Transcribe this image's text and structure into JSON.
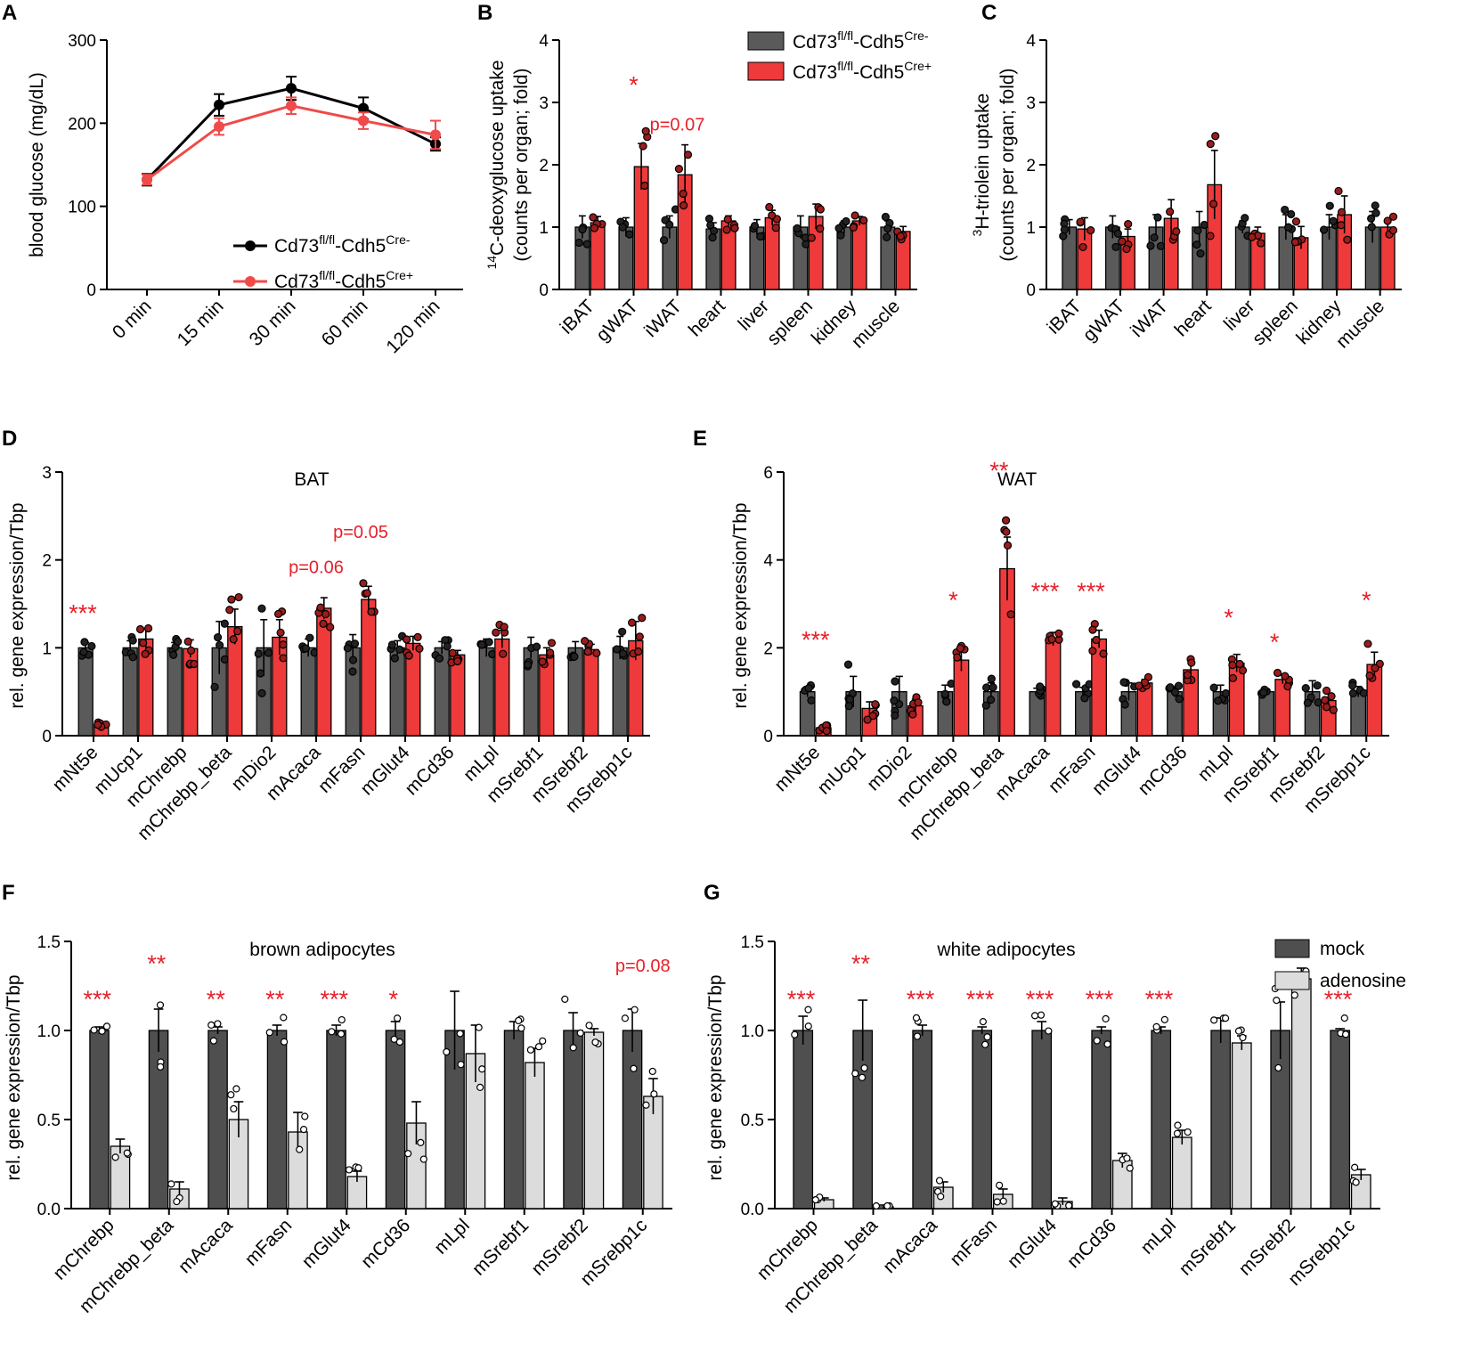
{
  "colors": {
    "ctrl": "#5a5a5a",
    "cre": "#ee3a3a",
    "mock": "#4f4f4f",
    "adenosine": "#dcdcdc",
    "sig": "#e8202a",
    "line_ctrl": "#000000",
    "line_cre": "#f04a4a"
  },
  "legend": {
    "ctrl_base": "Cd73",
    "ctrl_sup1": "fl/fl",
    "ctrl_mid": "-Cdh5",
    "ctrl_sup2": "Cre-",
    "cre_base": "Cd73",
    "cre_sup1": "fl/fl",
    "cre_mid": "-Cdh5",
    "cre_sup2": "Cre+",
    "mock": "mock",
    "adenosine": "adenosine"
  },
  "chart_data": [
    {
      "panel": "A",
      "type": "line",
      "ylabel": "blood glucose (mg/dL)",
      "categories": [
        "0 min",
        "15 min",
        "30 min",
        "60 min",
        "120 min"
      ],
      "yticks": [
        "0",
        "100",
        "200",
        "300"
      ],
      "ylim": [
        0,
        300
      ],
      "series": [
        {
          "name": "Cd73fl/fl-Cdh5Cre-",
          "values": [
            132,
            222,
            242,
            218,
            175
          ],
          "err": [
            7,
            13,
            14,
            13,
            8
          ]
        },
        {
          "name": "Cd73fl/fl-Cdh5Cre+",
          "values": [
            132,
            196,
            221,
            203,
            186
          ],
          "err": [
            6,
            10,
            10,
            10,
            17
          ]
        }
      ]
    },
    {
      "panel": "B",
      "type": "bar",
      "ylabel1": "14C-deoxyglucose uptake",
      "ylabel_sup": "14",
      "ylabel_base": "C-deoxyglucose uptake",
      "ylabel2": "(counts per organ; fold)",
      "categories": [
        "iBAT",
        "gWAT",
        "iWAT",
        "heart",
        "liver",
        "spleen",
        "kidney",
        "muscle"
      ],
      "yticks": [
        "0",
        "1",
        "2",
        "3",
        "4"
      ],
      "ylim": [
        0,
        4
      ],
      "series": [
        {
          "name": "Cd73fl/fl-Cdh5Cre-",
          "values": [
            1.0,
            1.0,
            1.0,
            0.97,
            1.0,
            1.0,
            1.0,
            1.0
          ],
          "err": [
            0.18,
            0.15,
            0.18,
            0.1,
            0.12,
            0.18,
            0.1,
            0.1
          ]
        },
        {
          "name": "Cd73fl/fl-Cdh5Cre+",
          "values": [
            1.07,
            1.97,
            1.84,
            1.1,
            1.15,
            1.17,
            1.1,
            0.93
          ],
          "err": [
            0.1,
            0.37,
            0.48,
            0.08,
            0.12,
            0.2,
            0.07,
            0.08
          ]
        }
      ],
      "annotations": [
        {
          "text": "*",
          "cat": 1,
          "y": 3.15
        },
        {
          "text": "p=0.07",
          "cat": 2,
          "y": 2.55
        }
      ]
    },
    {
      "panel": "C",
      "type": "bar",
      "ylabel_sup": "3",
      "ylabel_base": "H-triolein uptake",
      "ylabel2": "(counts per organ; fold)",
      "categories": [
        "iBAT",
        "gWAT",
        "iWAT",
        "heart",
        "liver",
        "spleen",
        "kidney",
        "muscle"
      ],
      "yticks": [
        "0",
        "1",
        "2",
        "3",
        "4"
      ],
      "ylim": [
        0,
        4
      ],
      "series": [
        {
          "name": "Cd73fl/fl-Cdh5Cre-",
          "values": [
            1.0,
            1.0,
            1.0,
            1.0,
            1.0,
            1.0,
            1.0,
            1.0
          ],
          "err": [
            0.12,
            0.18,
            0.2,
            0.25,
            0.1,
            0.2,
            0.2,
            0.25
          ]
        },
        {
          "name": "Cd73fl/fl-Cdh5Cre+",
          "values": [
            0.97,
            0.85,
            1.14,
            1.68,
            0.9,
            0.83,
            1.2,
            1.0
          ],
          "err": [
            0.18,
            0.12,
            0.3,
            0.55,
            0.1,
            0.18,
            0.3,
            0.12
          ]
        }
      ]
    },
    {
      "panel": "D",
      "type": "bar",
      "ylabel": "rel. gene expression/Tbp",
      "inset_title": "BAT",
      "categories": [
        "mNt5e",
        "mUcp1",
        "mChrebp",
        "mChrebp_beta",
        "mDio2",
        "mAcaca",
        "mFasn",
        "mGlut4",
        "mCd36",
        "mLpl",
        "mSrebf1",
        "mSrebf2",
        "mSrebp1c"
      ],
      "yticks": [
        "0",
        "1",
        "2",
        "3"
      ],
      "ylim": [
        0,
        3
      ],
      "series": [
        {
          "name": "Cd73fl/fl-Cdh5Cre-",
          "values": [
            1.0,
            1.0,
            1.0,
            1.0,
            1.0,
            1.0,
            1.0,
            1.0,
            1.0,
            1.0,
            1.0,
            1.0,
            1.0
          ],
          "err": [
            0.06,
            0.08,
            0.06,
            0.3,
            0.32,
            0.1,
            0.15,
            0.08,
            0.07,
            0.1,
            0.12,
            0.07,
            0.13
          ]
        },
        {
          "name": "Cd73fl/fl-Cdh5Cre+",
          "values": [
            0.13,
            1.1,
            0.99,
            1.24,
            1.12,
            1.45,
            1.55,
            1.05,
            0.92,
            1.1,
            0.92,
            0.98,
            1.08
          ]
        },
        {
          "name": "err_cre",
          "values": [
            0.02,
            0.12,
            0.1,
            0.2,
            0.2,
            0.12,
            0.15,
            0.08,
            0.05,
            0.1,
            0.08,
            0.06,
            0.22
          ]
        }
      ],
      "annotations": [
        {
          "text": "***",
          "cat": 0,
          "y": 1.3
        },
        {
          "text": "p=0.06",
          "cat": 5,
          "y": 1.85
        },
        {
          "text": "p=0.05",
          "cat": 6,
          "y": 2.25
        }
      ]
    },
    {
      "panel": "E",
      "type": "bar",
      "ylabel": "rel. gene expression/Tbp",
      "inset_title": "WAT",
      "categories": [
        "mNt5e",
        "mUcp1",
        "mDio2",
        "mChrebp",
        "mChrebp_beta",
        "mAcaca",
        "mFasn",
        "mGlut4",
        "mCd36",
        "mLpl",
        "mSrebf1",
        "mSrebf2",
        "mSrebp1c"
      ],
      "yticks": [
        "0",
        "2",
        "4",
        "6"
      ],
      "ylim": [
        0,
        6
      ],
      "series": [
        {
          "name": "Cd73fl/fl-Cdh5Cre-",
          "values": [
            1.0,
            1.0,
            1.0,
            1.0,
            1.0,
            1.0,
            1.0,
            1.0,
            1.0,
            1.0,
            1.0,
            1.0,
            1.0
          ],
          "err": [
            0.12,
            0.35,
            0.35,
            0.15,
            0.2,
            0.08,
            0.1,
            0.2,
            0.12,
            0.15,
            0.05,
            0.25,
            0.12
          ]
        },
        {
          "name": "Cd73fl/fl-Cdh5Cre+",
          "values": [
            0.18,
            0.62,
            0.68,
            1.72,
            3.8,
            2.2,
            2.2,
            1.2,
            1.5,
            1.65,
            1.28,
            0.8,
            1.62
          ]
        },
        {
          "name": "err_cre",
          "values": [
            0.05,
            0.15,
            0.15,
            0.25,
            0.72,
            0.15,
            0.2,
            0.08,
            0.25,
            0.2,
            0.1,
            0.15,
            0.28
          ]
        }
      ],
      "annotations": [
        {
          "text": "***",
          "cat": 0,
          "y": 2.0
        },
        {
          "text": "*",
          "cat": 3,
          "y": 2.9
        },
        {
          "text": "**",
          "cat": 4,
          "y": 5.85
        },
        {
          "text": "***",
          "cat": 5,
          "y": 3.1
        },
        {
          "text": "***",
          "cat": 6,
          "y": 3.1
        },
        {
          "text": "*",
          "cat": 9,
          "y": 2.5
        },
        {
          "text": "*",
          "cat": 10,
          "y": 1.95
        },
        {
          "text": "*",
          "cat": 12,
          "y": 2.9
        }
      ]
    },
    {
      "panel": "F",
      "type": "bar",
      "ylabel": "rel. gene expression/Tbp",
      "inset_title": "brown adipocytes",
      "categories": [
        "mChrebp",
        "mChrebp_beta",
        "mAcaca",
        "mFasn",
        "mGlut4",
        "mCd36",
        "mLpl",
        "mSrebf1",
        "mSrebf2",
        "mSrebp1c"
      ],
      "yticks": [
        "0.0",
        "0.5",
        "1.0",
        "1.5"
      ],
      "ylim": [
        0,
        1.5
      ],
      "series": [
        {
          "name": "mock",
          "values": [
            1.0,
            1.0,
            1.0,
            1.0,
            1.0,
            1.0,
            1.0,
            1.0,
            1.0,
            1.0
          ],
          "err": [
            0.02,
            0.12,
            0.02,
            0.03,
            0.03,
            0.05,
            0.22,
            0.05,
            0.1,
            0.12
          ]
        },
        {
          "name": "adenosine",
          "values": [
            0.35,
            0.11,
            0.5,
            0.43,
            0.18,
            0.48,
            0.87,
            0.82,
            0.99,
            0.63
          ]
        },
        {
          "name": "err_adenosine",
          "values": [
            0.04,
            0.04,
            0.1,
            0.11,
            0.03,
            0.12,
            0.16,
            0.08,
            0.02,
            0.1
          ]
        }
      ],
      "annotations": [
        {
          "text": "***",
          "cat": 0,
          "y": 1.13
        },
        {
          "text": "**",
          "cat": 1,
          "y": 1.33
        },
        {
          "text": "**",
          "cat": 2,
          "y": 1.13
        },
        {
          "text": "**",
          "cat": 3,
          "y": 1.13
        },
        {
          "text": "***",
          "cat": 4,
          "y": 1.13
        },
        {
          "text": "*",
          "cat": 5,
          "y": 1.13
        },
        {
          "text": "p=0.08",
          "cat": 9,
          "y": 1.33
        }
      ]
    },
    {
      "panel": "G",
      "type": "bar",
      "ylabel": "rel. gene expression/Tbp",
      "inset_title": "white adipocytes",
      "categories": [
        "mChrebp",
        "mChrebp_beta",
        "mAcaca",
        "mFasn",
        "mGlut4",
        "mCd36",
        "mLpl",
        "mSrebf1",
        "mSrebf2",
        "mSrebp1c"
      ],
      "yticks": [
        "0.0",
        "0.5",
        "1.0",
        "1.5"
      ],
      "ylim": [
        0,
        1.5
      ],
      "series": [
        {
          "name": "mock",
          "values": [
            1.0,
            1.0,
            1.0,
            1.0,
            1.0,
            1.0,
            1.0,
            1.0,
            1.0,
            1.0
          ],
          "err": [
            0.08,
            0.17,
            0.03,
            0.02,
            0.05,
            0.02,
            0.02,
            0.07,
            0.16,
            0.01
          ]
        },
        {
          "name": "adenosine",
          "values": [
            0.05,
            0.01,
            0.12,
            0.08,
            0.04,
            0.27,
            0.4,
            0.93,
            1.29,
            0.19
          ]
        },
        {
          "name": "err_adenosine",
          "values": [
            0.01,
            0.01,
            0.03,
            0.03,
            0.02,
            0.04,
            0.04,
            0.04,
            0.06,
            0.03
          ]
        }
      ],
      "annotations": [
        {
          "text": "***",
          "cat": 0,
          "y": 1.13
        },
        {
          "text": "**",
          "cat": 1,
          "y": 1.33
        },
        {
          "text": "***",
          "cat": 2,
          "y": 1.13
        },
        {
          "text": "***",
          "cat": 3,
          "y": 1.13
        },
        {
          "text": "***",
          "cat": 4,
          "y": 1.13
        },
        {
          "text": "***",
          "cat": 5,
          "y": 1.13
        },
        {
          "text": "***",
          "cat": 6,
          "y": 1.13
        },
        {
          "text": "***",
          "cat": 9,
          "y": 1.13
        }
      ]
    }
  ],
  "panels": {
    "A": "A",
    "B": "B",
    "C": "C",
    "D": "D",
    "E": "E",
    "F": "F",
    "G": "G"
  }
}
